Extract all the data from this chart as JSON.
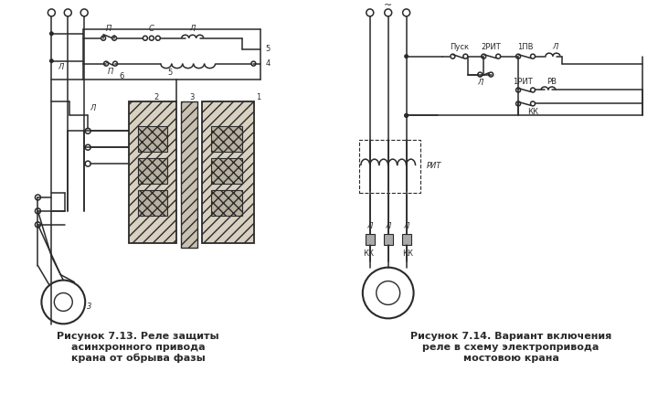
{
  "bg_color": "#ffffff",
  "line_color": "#2a2a2a",
  "caption1_line1": "Рисунок 7.13. Реле защиты",
  "caption1_line2": "асинхронного привода",
  "caption1_line3": "крана от обрыва фазы",
  "caption2_line1": "Рисунок 7.14. Вариант включения",
  "caption2_line2": "реле в схему электропривода",
  "caption2_line3": "мостовою крана",
  "fig_width": 7.2,
  "fig_height": 4.3,
  "dpi": 100
}
